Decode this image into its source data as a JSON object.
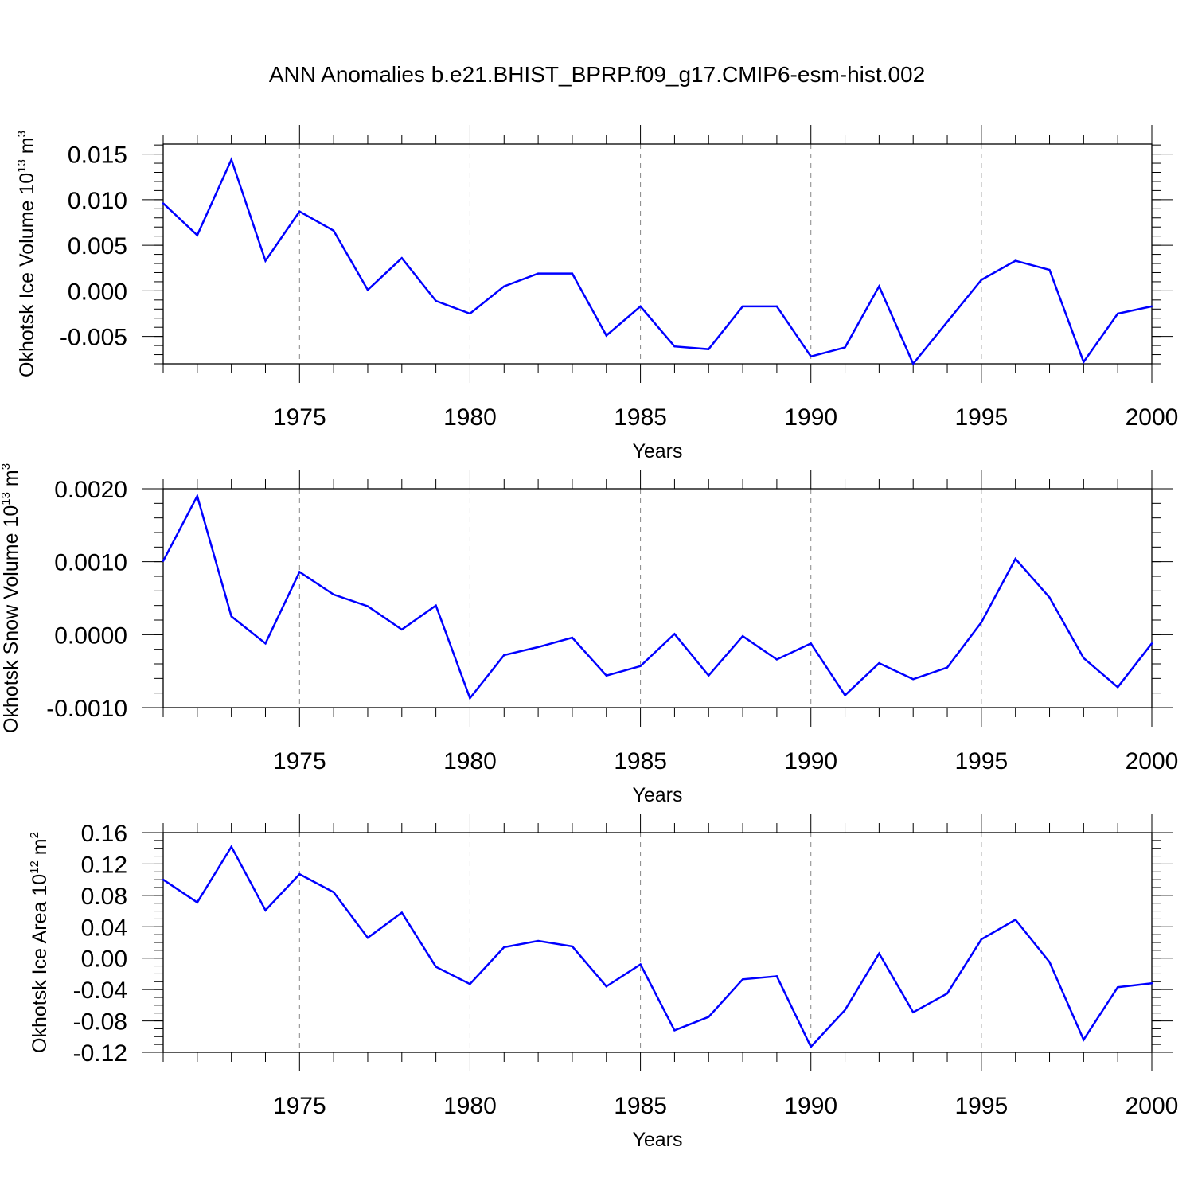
{
  "title": "ANN Anomalies b.e21.BHIST_BPRP.f09_g17.CMIP6-esm-hist.002",
  "colors": {
    "line": "#0000ff",
    "axis": "#000000",
    "grid": "#888888"
  },
  "chart_data": [
    {
      "type": "line",
      "ylabel": "Okhotsk Ice Volume",
      "ylabel_unit": "10",
      "ylabel_exp": "13",
      "ylabel_unit2": " m",
      "ylabel_exp2": "3",
      "xlabel": "Years",
      "xlim": [
        1971,
        2000
      ],
      "ylim": [
        -0.008,
        0.0161
      ],
      "xticks": [
        1975,
        1980,
        1985,
        1990,
        1995,
        2000
      ],
      "yticks": [
        -0.005,
        0.0,
        0.005,
        0.01,
        0.015
      ],
      "ytick_labels": [
        "-0.005",
        "0.000",
        "0.005",
        "0.010",
        "0.015"
      ],
      "yminor_step": 0.001,
      "x": [
        1971,
        1972,
        1973,
        1974,
        1975,
        1976,
        1977,
        1978,
        1979,
        1980,
        1981,
        1982,
        1983,
        1984,
        1985,
        1986,
        1987,
        1988,
        1989,
        1990,
        1991,
        1992,
        1993,
        1994,
        1995,
        1996,
        1997,
        1998,
        1999,
        2000
      ],
      "values": [
        0.0096,
        0.0061,
        0.0144,
        0.0033,
        0.0087,
        0.0066,
        0.0001,
        0.0036,
        -0.0011,
        -0.0025,
        0.0005,
        0.0019,
        0.0019,
        -0.0049,
        -0.0017,
        -0.0061,
        -0.0064,
        -0.0017,
        -0.0017,
        -0.0072,
        -0.0062,
        0.0005,
        -0.008,
        -0.0034,
        0.0012,
        0.0033,
        0.0023,
        -0.0078,
        -0.0025,
        -0.0017
      ]
    },
    {
      "type": "line",
      "ylabel": "Okhotsk Snow Volume",
      "ylabel_unit": "10",
      "ylabel_exp": "13",
      "ylabel_unit2": " m",
      "ylabel_exp2": "3",
      "xlabel": "Years",
      "xlim": [
        1971,
        2000
      ],
      "ylim": [
        -0.001,
        0.002
      ],
      "xticks": [
        1975,
        1980,
        1985,
        1990,
        1995,
        2000
      ],
      "yticks": [
        -0.001,
        0.0,
        0.001,
        0.002
      ],
      "ytick_labels": [
        "-0.0010",
        "0.0000",
        "0.0010",
        "0.0020"
      ],
      "yminor_step": 0.0002,
      "x": [
        1971,
        1972,
        1973,
        1974,
        1975,
        1976,
        1977,
        1978,
        1979,
        1980,
        1981,
        1982,
        1983,
        1984,
        1985,
        1986,
        1987,
        1988,
        1989,
        1990,
        1991,
        1992,
        1993,
        1994,
        1995,
        1996,
        1997,
        1998,
        1999,
        2000
      ],
      "values": [
        0.00101,
        0.0019,
        0.00025,
        -0.00012,
        0.00086,
        0.00055,
        0.00039,
        7e-05,
        0.0004,
        -0.00087,
        -0.00028,
        -0.00017,
        -4e-05,
        -0.00056,
        -0.00043,
        1e-05,
        -0.00056,
        -2e-05,
        -0.00034,
        -0.00012,
        -0.00083,
        -0.00039,
        -0.00061,
        -0.00045,
        0.00017,
        0.00104,
        0.00051,
        -0.00032,
        -0.00072,
        -0.00012
      ]
    },
    {
      "type": "line",
      "ylabel": "Okhotsk Ice Area",
      "ylabel_unit": "10",
      "ylabel_exp": "12",
      "ylabel_unit2": " m",
      "ylabel_exp2": "2",
      "xlabel": "Years",
      "xlim": [
        1971,
        2000
      ],
      "ylim": [
        -0.12,
        0.16
      ],
      "xticks": [
        1975,
        1980,
        1985,
        1990,
        1995,
        2000
      ],
      "yticks": [
        -0.12,
        -0.08,
        -0.04,
        0.0,
        0.04,
        0.08,
        0.12,
        0.16
      ],
      "ytick_labels": [
        "-0.12",
        "-0.08",
        "-0.04",
        "0.00",
        "0.04",
        "0.08",
        "0.12",
        "0.16"
      ],
      "yminor_step": 0.01,
      "x": [
        1971,
        1972,
        1973,
        1974,
        1975,
        1976,
        1977,
        1978,
        1979,
        1980,
        1981,
        1982,
        1983,
        1984,
        1985,
        1986,
        1987,
        1988,
        1989,
        1990,
        1991,
        1992,
        1993,
        1994,
        1995,
        1996,
        1997,
        1998,
        1999,
        2000
      ],
      "values": [
        0.1,
        0.071,
        0.142,
        0.061,
        0.107,
        0.084,
        0.026,
        0.058,
        -0.011,
        -0.033,
        0.014,
        0.022,
        0.015,
        -0.036,
        -0.008,
        -0.092,
        -0.075,
        -0.027,
        -0.023,
        -0.113,
        -0.066,
        0.006,
        -0.069,
        -0.045,
        0.024,
        0.049,
        -0.005,
        -0.104,
        -0.037,
        -0.032
      ]
    }
  ]
}
